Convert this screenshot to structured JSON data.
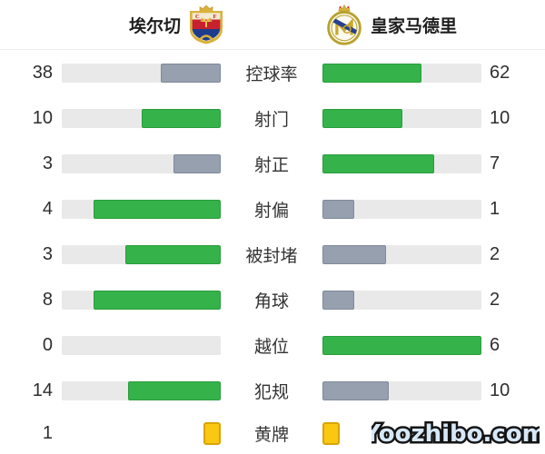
{
  "header": {
    "home_team": "埃尔切",
    "away_team": "皇家马德里"
  },
  "watermark": "Yoozhibo.com",
  "colors": {
    "green": "#35b34a",
    "green_border": "#2a9c3e",
    "gray": "#96a0af",
    "gray_border": "#7e8a9c",
    "track": "#e9e9e9",
    "yellow": "#fac711",
    "yellow_border": "#d8a400"
  },
  "stats": {
    "rows": [
      {
        "key": "possession",
        "label": "控球率",
        "home": "38",
        "away": "62",
        "home_pct": 38,
        "away_pct": 62,
        "home_color": "gray",
        "away_color": "green",
        "type": "bar"
      },
      {
        "key": "shots",
        "label": "射门",
        "home": "10",
        "away": "10",
        "home_pct": 50,
        "away_pct": 50,
        "home_color": "green",
        "away_color": "green",
        "type": "bar"
      },
      {
        "key": "on-target",
        "label": "射正",
        "home": "3",
        "away": "7",
        "home_pct": 30,
        "away_pct": 70,
        "home_color": "gray",
        "away_color": "green",
        "type": "bar"
      },
      {
        "key": "off-target",
        "label": "射偏",
        "home": "4",
        "away": "1",
        "home_pct": 80,
        "away_pct": 20,
        "home_color": "green",
        "away_color": "gray",
        "type": "bar"
      },
      {
        "key": "blocked",
        "label": "被封堵",
        "home": "3",
        "away": "2",
        "home_pct": 60,
        "away_pct": 40,
        "home_color": "green",
        "away_color": "gray",
        "type": "bar"
      },
      {
        "key": "corners",
        "label": "角球",
        "home": "8",
        "away": "2",
        "home_pct": 80,
        "away_pct": 20,
        "home_color": "green",
        "away_color": "gray",
        "type": "bar"
      },
      {
        "key": "offsides",
        "label": "越位",
        "home": "0",
        "away": "6",
        "home_pct": 0,
        "away_pct": 100,
        "home_color": "green",
        "away_color": "green",
        "type": "bar"
      },
      {
        "key": "fouls",
        "label": "犯规",
        "home": "14",
        "away": "10",
        "home_pct": 58.3,
        "away_pct": 41.7,
        "home_color": "green",
        "away_color": "gray",
        "type": "bar"
      },
      {
        "key": "yellow-cards",
        "label": "黄牌",
        "home": "1",
        "away": "",
        "home_cards": 1,
        "away_cards": 1,
        "type": "cards"
      }
    ]
  },
  "chart_data": {
    "type": "bar",
    "title": "埃尔切 vs 皇家马德里",
    "categories": [
      "控球率",
      "射门",
      "射正",
      "射偏",
      "被封堵",
      "角球",
      "越位",
      "犯规",
      "黄牌"
    ],
    "series": [
      {
        "name": "埃尔切",
        "values": [
          38,
          10,
          3,
          4,
          3,
          8,
          0,
          14,
          1
        ]
      },
      {
        "name": "皇家马德里",
        "values": [
          62,
          10,
          7,
          1,
          2,
          2,
          6,
          10,
          null
        ]
      }
    ],
    "layout": "horizontal paired bars growing outward from center labels; higher value shown green, lower gray, ties green; away yellow-card number obscured by watermark"
  }
}
